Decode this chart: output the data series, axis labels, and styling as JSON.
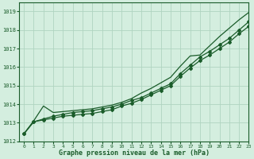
{
  "bg_color": "#d4eedf",
  "grid_color": "#b0d4c0",
  "line_color": "#1a5c2a",
  "xlabel": "Graphe pression niveau de la mer (hPa)",
  "xlim": [
    -0.5,
    23
  ],
  "ylim": [
    1012,
    1019.5
  ],
  "yticks": [
    1012,
    1013,
    1014,
    1015,
    1016,
    1017,
    1018,
    1019
  ],
  "xticks": [
    0,
    1,
    2,
    3,
    4,
    5,
    6,
    7,
    8,
    9,
    10,
    11,
    12,
    13,
    14,
    15,
    16,
    17,
    18,
    19,
    20,
    21,
    22,
    23
  ],
  "line1_no_marker": {
    "x": [
      0,
      1,
      2,
      3,
      4,
      5,
      6,
      7,
      8,
      9,
      10,
      11,
      12,
      13,
      14,
      15,
      16,
      17,
      18,
      19,
      20,
      21,
      22,
      23
    ],
    "y": [
      1012.4,
      1013.1,
      1013.9,
      1013.55,
      1013.6,
      1013.65,
      1013.7,
      1013.75,
      1013.85,
      1013.95,
      1014.1,
      1014.3,
      1014.6,
      1014.85,
      1015.15,
      1015.45,
      1016.05,
      1016.6,
      1016.65,
      1017.15,
      1017.65,
      1018.1,
      1018.55,
      1018.95
    ]
  },
  "line2_with_marker": {
    "x": [
      0,
      1,
      2,
      3,
      4,
      5,
      6,
      7,
      8,
      9,
      10,
      11,
      12,
      13,
      14,
      15,
      16,
      17,
      18,
      19,
      20,
      21,
      22,
      23
    ],
    "y": [
      1012.4,
      1013.05,
      1013.2,
      1013.35,
      1013.45,
      1013.55,
      1013.6,
      1013.65,
      1013.75,
      1013.85,
      1014.0,
      1014.2,
      1014.35,
      1014.6,
      1014.85,
      1015.1,
      1015.65,
      1016.1,
      1016.55,
      1016.85,
      1017.2,
      1017.55,
      1018.0,
      1018.45
    ]
  },
  "line3_with_marker": {
    "x": [
      0,
      1,
      2,
      3,
      4,
      5,
      6,
      7,
      8,
      9,
      10,
      11,
      12,
      13,
      14,
      15,
      16,
      17,
      18,
      19,
      20,
      21,
      22,
      23
    ],
    "y": [
      1012.4,
      1013.05,
      1013.15,
      1013.25,
      1013.35,
      1013.4,
      1013.45,
      1013.5,
      1013.6,
      1013.7,
      1013.9,
      1014.05,
      1014.25,
      1014.5,
      1014.75,
      1015.0,
      1015.5,
      1015.95,
      1016.35,
      1016.65,
      1017.0,
      1017.35,
      1017.8,
      1018.2
    ]
  }
}
